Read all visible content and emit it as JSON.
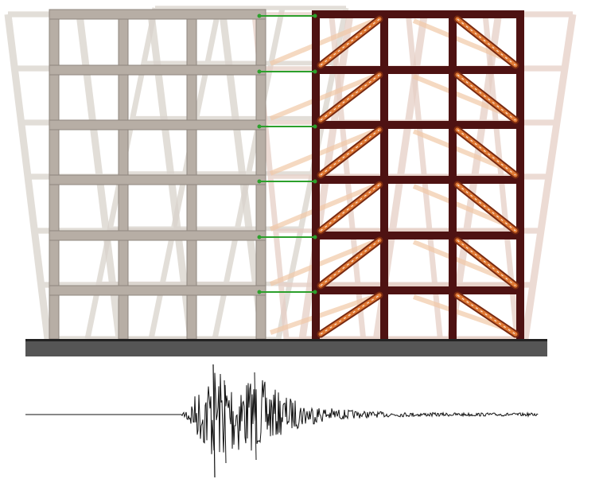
{
  "diagram": {
    "storeys": 6,
    "concrete_frame": {
      "bays": 3,
      "color": "#b7aea5",
      "edge": "#8f877e"
    },
    "steel_frame": {
      "bays": 3,
      "color": "#4e1212",
      "brace_color": "#e07a35"
    },
    "links": {
      "count": 6,
      "color": "#2ca02c"
    },
    "ghost_colors": {
      "concrete": "#d9d3cc",
      "steel": "#e6cfc6",
      "brace": "#f2c9a8"
    },
    "ground_color": "#555555",
    "seismogram": {
      "color": "#111111"
    }
  }
}
